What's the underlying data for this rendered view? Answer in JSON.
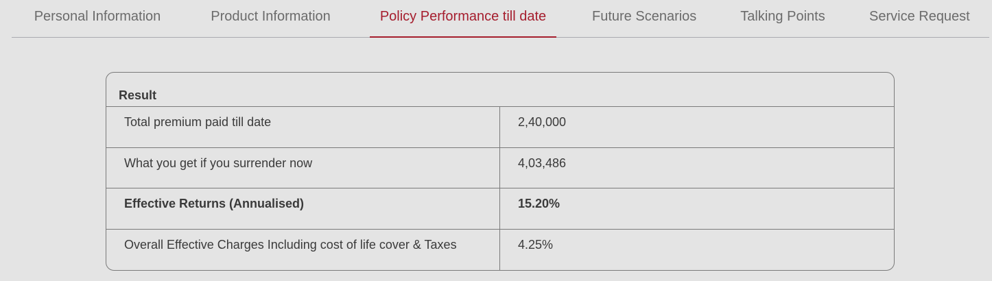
{
  "tabs": [
    {
      "label": "Personal Information",
      "active": false
    },
    {
      "label": "Product Information",
      "active": false
    },
    {
      "label": "Policy Performance till date",
      "active": true
    },
    {
      "label": "Future Scenarios",
      "active": false
    },
    {
      "label": "Talking Points",
      "active": false
    },
    {
      "label": "Service Request",
      "active": false
    }
  ],
  "result": {
    "title": "Result",
    "rows": [
      {
        "label": "Total premium paid till date",
        "value": "2,40,000"
      },
      {
        "label": "What you get if you surrender now",
        "value": "4,03,486"
      },
      {
        "label": "Effective Returns (Annualised)",
        "value": "15.20%"
      },
      {
        "label": "Overall Effective Charges Including cost of life cover & Taxes",
        "value": "4.25%"
      }
    ]
  },
  "colors": {
    "accent": "#a51d2d",
    "background": "#e4e4e4",
    "inactive_tab": "#6b6b6b"
  }
}
